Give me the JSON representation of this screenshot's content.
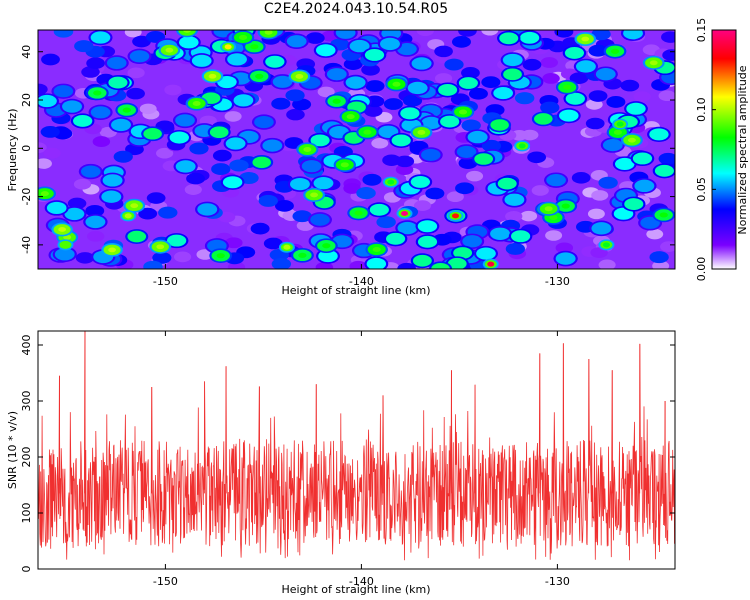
{
  "title": "C2E4.2024.043.10.54.R05",
  "chart_data": [
    {
      "type": "heatmap",
      "title": "C2E4.2024.043.10.54.R05",
      "xlabel": "Height of straight line (km)",
      "ylabel": "Frequency (Hz)",
      "xlim": [
        -156.5,
        -124
      ],
      "ylim": [
        -50,
        49
      ],
      "xticks": [
        -150,
        -140,
        -130
      ],
      "yticks": [
        -40,
        -20,
        0,
        20,
        40
      ],
      "colorbar": {
        "label": "Normalized spectral amplitude",
        "range": [
          0.0,
          0.15
        ],
        "ticks": [
          "0.00",
          "0.05",
          "0.10",
          "0.15"
        ],
        "colors": [
          "#ffffff",
          "#7a00ff",
          "#0000ff",
          "#00ffff",
          "#00ff00",
          "#ffff00",
          "#ff0000",
          "#ff0080"
        ]
      },
      "background_level": 0.015,
      "peaks": [
        {
          "x": -137.8,
          "y": -27,
          "value": 0.15
        },
        {
          "x": -133.4,
          "y": -48,
          "value": 0.14
        },
        {
          "x": -135.2,
          "y": -28,
          "value": 0.13
        },
        {
          "x": -146.8,
          "y": 42,
          "value": 0.11
        },
        {
          "x": -143.8,
          "y": -41,
          "value": 0.1
        },
        {
          "x": -151.9,
          "y": -28,
          "value": 0.1
        },
        {
          "x": -155.1,
          "y": -40,
          "value": 0.09
        },
        {
          "x": -126.8,
          "y": 10,
          "value": 0.08
        },
        {
          "x": -131.8,
          "y": 1,
          "value": 0.08
        },
        {
          "x": -138.5,
          "y": -14,
          "value": 0.08
        },
        {
          "x": -127.5,
          "y": -40,
          "value": 0.08
        }
      ]
    },
    {
      "type": "line",
      "xlabel": "Height of straight line (km)",
      "ylabel": "SNR (10 * v/v)",
      "xlim": [
        -156.5,
        -124
      ],
      "ylim": [
        0,
        425
      ],
      "xticks": [
        -150,
        -140,
        -130
      ],
      "yticks": [
        0,
        100,
        200,
        300,
        400
      ],
      "color": "#f03030",
      "baseline_mean": 135,
      "typical_range": [
        40,
        260
      ],
      "peaks": [
        {
          "x": -154.1,
          "y": 425
        },
        {
          "x": -129.7,
          "y": 403
        },
        {
          "x": -125.8,
          "y": 402
        },
        {
          "x": -130.9,
          "y": 385
        },
        {
          "x": -128.4,
          "y": 375
        },
        {
          "x": -146.9,
          "y": 362
        },
        {
          "x": -135.4,
          "y": 355
        },
        {
          "x": -127.2,
          "y": 355
        },
        {
          "x": -155.4,
          "y": 345
        },
        {
          "x": -148.0,
          "y": 335
        },
        {
          "x": -142.3,
          "y": 330
        },
        {
          "x": -134.2,
          "y": 329
        },
        {
          "x": -145.2,
          "y": 326
        },
        {
          "x": -150.7,
          "y": 325
        },
        {
          "x": -138.9,
          "y": 310
        },
        {
          "x": -124.5,
          "y": 300
        }
      ]
    }
  ]
}
